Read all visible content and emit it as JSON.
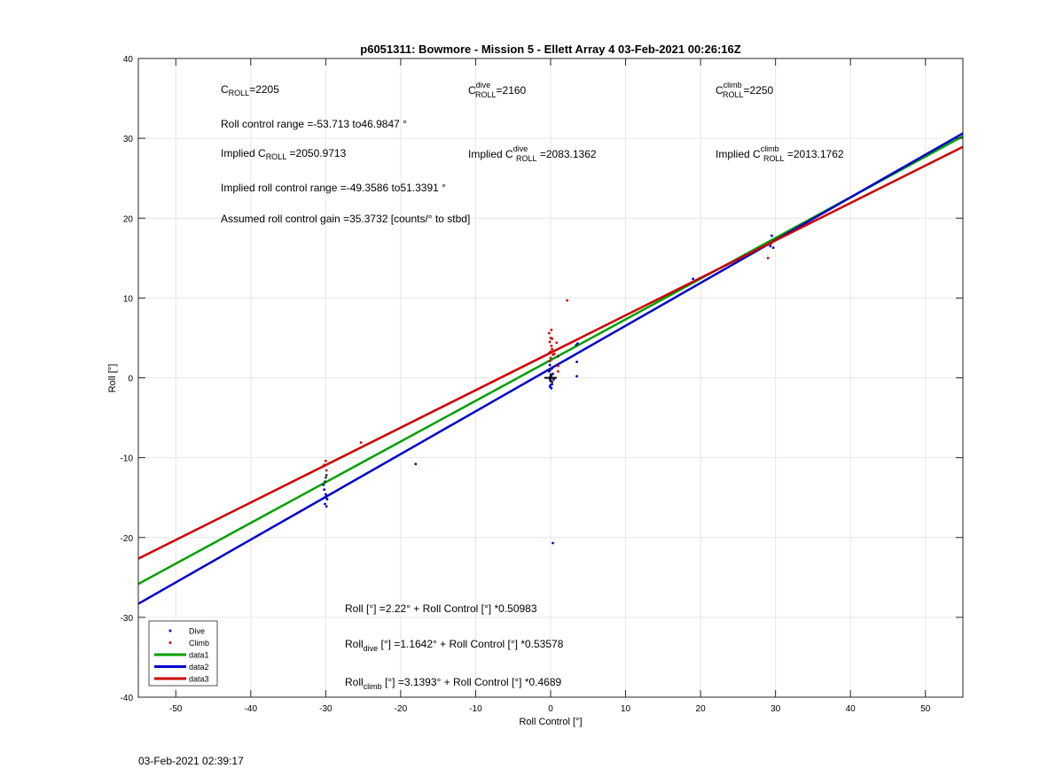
{
  "chart_data": {
    "type": "scatter",
    "title": "p6051311: Bowmore - Mission 5 - Ellett Array 4 03-Feb-2021 00:26:16Z",
    "xlabel": "Roll Control [°]",
    "ylabel": "Roll [°]",
    "xlim": [
      -55,
      55
    ],
    "ylim": [
      -40,
      40
    ],
    "xticks": [
      -50,
      -40,
      -30,
      -20,
      -10,
      0,
      10,
      20,
      30,
      40,
      50
    ],
    "yticks": [
      -40,
      -30,
      -20,
      -10,
      0,
      10,
      20,
      30,
      40
    ],
    "grid": true,
    "legend_position": "bottom-left",
    "legend": [
      {
        "label": "Dive",
        "kind": "marker",
        "color": "#0000cc"
      },
      {
        "label": "Climb",
        "kind": "marker",
        "color": "#dd0000"
      },
      {
        "label": "data1",
        "kind": "line",
        "color": "#00a000"
      },
      {
        "label": "data2",
        "kind": "line",
        "color": "#0000cc"
      },
      {
        "label": "data3",
        "kind": "line",
        "color": "#cc0000"
      }
    ],
    "fit_lines": [
      {
        "name": "data1",
        "color": "#00a000",
        "intercept": 2.22,
        "slope": 0.50983
      },
      {
        "name": "data2",
        "color": "#0000cc",
        "intercept": 1.1642,
        "slope": 0.53578
      },
      {
        "name": "data3",
        "color": "#cc0000",
        "intercept": 3.1393,
        "slope": 0.4689
      }
    ],
    "series": [
      {
        "name": "Dive",
        "color": "#0000cc",
        "points": [
          [
            -30.2,
            -14.0
          ],
          [
            -30.0,
            -14.6
          ],
          [
            -29.8,
            -15.2
          ],
          [
            -30.1,
            -15.8
          ],
          [
            -29.9,
            -16.1
          ],
          [
            -30.3,
            -13.4
          ],
          [
            -30.0,
            -15.0
          ],
          [
            -18.0,
            -10.8
          ],
          [
            0.0,
            -0.4
          ],
          [
            0.2,
            -0.8
          ],
          [
            -0.1,
            -1.1
          ],
          [
            0.3,
            0.5
          ],
          [
            0.0,
            0.2
          ],
          [
            0.1,
            -1.3
          ],
          [
            -0.2,
            0.8
          ],
          [
            0.2,
            1.2
          ],
          [
            0.4,
            -0.2
          ],
          [
            -0.1,
            1.6
          ],
          [
            0.0,
            -0.9
          ],
          [
            3.5,
            2.0
          ],
          [
            3.5,
            0.2
          ],
          [
            3.6,
            4.3
          ],
          [
            0.3,
            -20.7
          ],
          [
            19.0,
            12.4
          ],
          [
            29.5,
            17.8
          ],
          [
            29.7,
            16.3
          ],
          [
            29.3,
            16.5
          ]
        ]
      },
      {
        "name": "Climb",
        "color": "#dd0000",
        "points": [
          [
            -30.0,
            -10.4
          ],
          [
            -30.2,
            -10.9
          ],
          [
            -29.9,
            -11.6
          ],
          [
            -25.3,
            -8.1
          ],
          [
            0.0,
            2.5
          ],
          [
            -0.2,
            3.1
          ],
          [
            0.2,
            3.6
          ],
          [
            0.1,
            4.0
          ],
          [
            -0.1,
            4.5
          ],
          [
            0.0,
            5.0
          ],
          [
            -0.2,
            5.6
          ],
          [
            0.1,
            6.0
          ],
          [
            0.3,
            2.9
          ],
          [
            0.0,
            3.3
          ],
          [
            0.8,
            4.4
          ],
          [
            0.5,
            3.0
          ],
          [
            1.0,
            1.5
          ],
          [
            1.0,
            0.8
          ],
          [
            0.2,
            4.9
          ],
          [
            -0.1,
            2.1
          ],
          [
            2.2,
            9.7
          ],
          [
            29.0,
            15.0
          ],
          [
            29.4,
            16.8
          ]
        ]
      },
      {
        "name": "Other",
        "color": "#333333",
        "points": [
          [
            -30.0,
            -12.5
          ],
          [
            -30.1,
            -13.0
          ],
          [
            -29.9,
            -12.2
          ],
          [
            0.0,
            0.0
          ],
          [
            0.1,
            0.3
          ],
          [
            -0.1,
            -0.2
          ],
          [
            0.0,
            1.0
          ],
          [
            0.2,
            -0.5
          ],
          [
            1.0,
            2.7
          ],
          [
            3.4,
            4.1
          ]
        ]
      }
    ],
    "crosshair": [
      0,
      0
    ]
  },
  "annotations": {
    "c_roll": {
      "base": "C",
      "sub": "ROLL",
      "sup": "",
      "value": "=2205"
    },
    "c_roll_dive": {
      "base": "C",
      "sub": "ROLL",
      "sup": "dive",
      "value": "=2160"
    },
    "c_roll_climb": {
      "base": "C",
      "sub": "ROLL",
      "sup": "climb",
      "value": "=2250"
    },
    "roll_range": "Roll control range =-53.713 to46.9847 °",
    "implied_c_roll": {
      "prefix": "Implied C",
      "sub": "ROLL",
      "sup": "",
      "value": " =2050.9713"
    },
    "implied_c_dive": {
      "prefix": "Implied C",
      "sub": "ROLL",
      "sup": "dive",
      "value": " =2083.1362"
    },
    "implied_c_climb": {
      "prefix": "Implied C",
      "sub": "ROLL",
      "sup": "climb",
      "value": " =2013.1762"
    },
    "implied_range": "Implied roll control range =-49.3586 to51.3391 °",
    "gain": "Assumed roll control gain =35.3732 [counts/° to stbd]",
    "eq_all": {
      "base": "Roll",
      "sub": "",
      "rest": " [°] =2.22° + Roll Control [°] *0.50983"
    },
    "eq_dive": {
      "base": "Roll",
      "sub": "dive",
      "rest": " [°] =1.1642° + Roll Control [°] *0.53578"
    },
    "eq_climb": {
      "base": "Roll",
      "sub": "climb",
      "rest": " [°] =3.1393° + Roll Control [°] *0.4689"
    }
  },
  "footer": {
    "timestamp": "03-Feb-2021 02:39:17"
  }
}
